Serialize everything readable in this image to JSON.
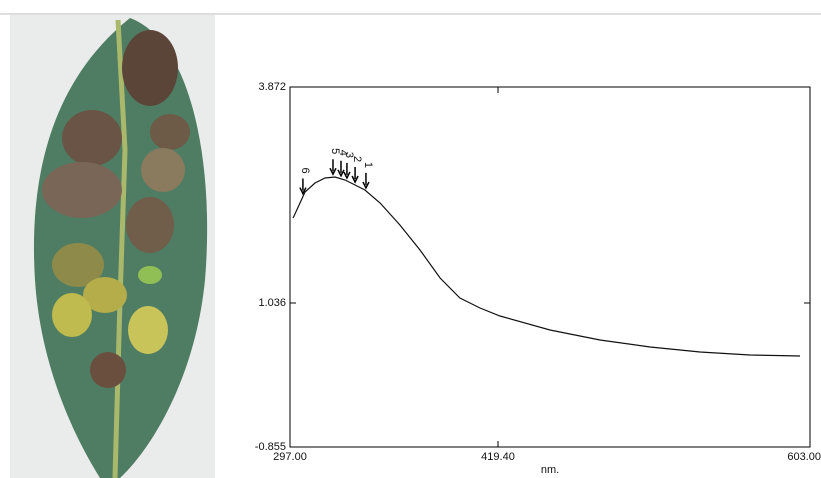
{
  "chart_data": {
    "type": "line",
    "x_label": "nm.",
    "xlim": [
      297,
      603
    ],
    "ylim": [
      -0.855,
      3.872
    ],
    "xticks": [
      {
        "value": 297,
        "label": "297.00"
      },
      {
        "value": 419.4,
        "label": "419.40"
      },
      {
        "value": 603,
        "label": "603.00"
      }
    ],
    "yticks": [
      -0.855,
      1.036,
      3.872
    ],
    "color": "#111111",
    "x": [
      298.8,
      302.9,
      305.8,
      311.7,
      317.6,
      323.5,
      329.4,
      335.3,
      341.1,
      350,
      361.7,
      373.5,
      385.3,
      397,
      408.8,
      420.6,
      450,
      479.4,
      508.9,
      538.3,
      567.7,
      597.1
    ],
    "values": [
      2.152,
      2.349,
      2.493,
      2.611,
      2.677,
      2.69,
      2.651,
      2.585,
      2.519,
      2.349,
      2.06,
      1.732,
      1.364,
      1.101,
      0.97,
      0.865,
      0.681,
      0.55,
      0.458,
      0.392,
      0.353,
      0.34
    ],
    "peak_markers": [
      {
        "label": "6",
        "x": 304.6
      },
      {
        "label": "5",
        "x": 322.3
      },
      {
        "label": "4",
        "x": 327
      },
      {
        "label": "3",
        "x": 330.5
      },
      {
        "label": "2",
        "x": 335.3
      },
      {
        "label": "1",
        "x": 341.7
      }
    ]
  }
}
